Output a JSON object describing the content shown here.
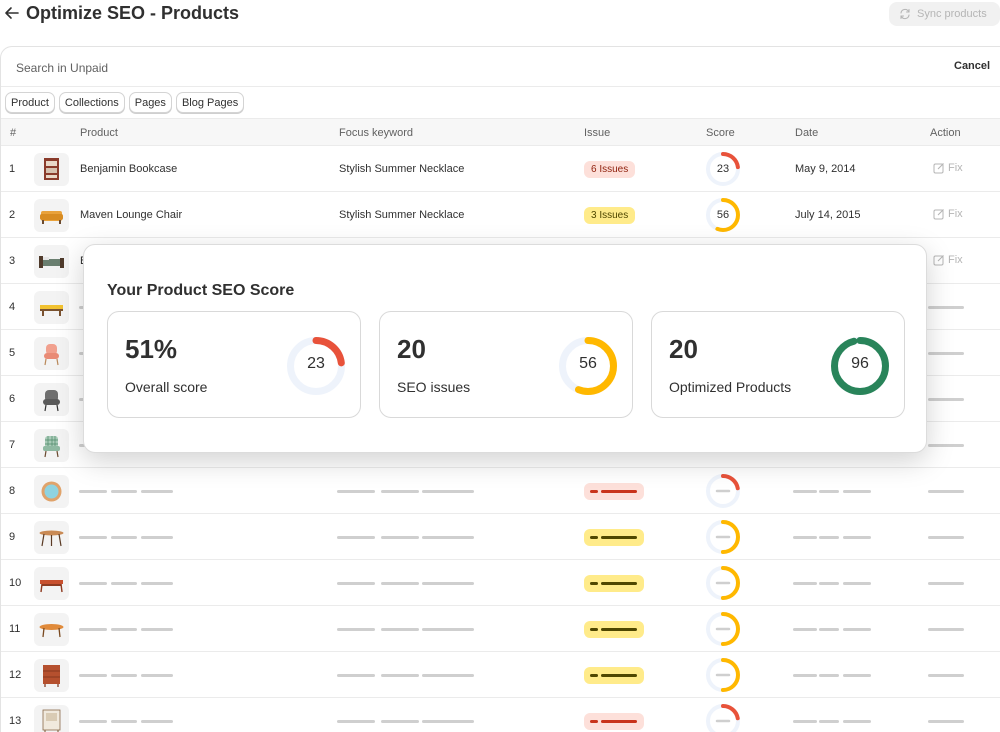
{
  "header": {
    "title": "Optimize SEO - Products",
    "sync_label": "Sync products"
  },
  "search": {
    "placeholder": "Search in Unpaid",
    "cancel_label": "Cancel"
  },
  "filters": [
    "Product",
    "Collections",
    "Pages",
    "Blog Pages"
  ],
  "table": {
    "columns": {
      "num": "#",
      "product": "Product",
      "keyword": "Focus keyword",
      "issue": "Issue",
      "score": "Score",
      "date": "Date",
      "action": "Action"
    },
    "rows": [
      {
        "num": "1",
        "product": "Benjamin Bookcase",
        "keyword": "Stylish Summer Necklace",
        "issue": "6 Issues",
        "issue_tone": "red",
        "score": 23,
        "date": "May 9, 2014",
        "action": "Fix",
        "thumb": "bookcase"
      },
      {
        "num": "2",
        "product": "Maven Lounge Chair",
        "keyword": "Stylish Summer Necklace",
        "issue": "3 Issues",
        "issue_tone": "yellow",
        "score": 56,
        "date": "July 14, 2015",
        "action": "Fix",
        "thumb": "sofa"
      },
      {
        "num": "3",
        "product": "B",
        "action": "Fix",
        "thumb": "bed"
      },
      {
        "num": "4",
        "thumb": "bench"
      },
      {
        "num": "5",
        "thumb": "pink-chair"
      },
      {
        "num": "6",
        "thumb": "gray-chair"
      },
      {
        "num": "7",
        "thumb": "plaid-chair"
      },
      {
        "num": "8",
        "thumb": "mirror",
        "issue_tone": "red"
      },
      {
        "num": "9",
        "thumb": "round-table",
        "issue_tone": "yellow"
      },
      {
        "num": "10",
        "thumb": "coffee-table",
        "issue_tone": "yellow"
      },
      {
        "num": "11",
        "thumb": "oval-table",
        "issue_tone": "yellow"
      },
      {
        "num": "12",
        "thumb": "dresser",
        "issue_tone": "yellow"
      },
      {
        "num": "13",
        "thumb": "cabinet",
        "issue_tone": "red"
      }
    ]
  },
  "overlay": {
    "title": "Your Product SEO Score",
    "cards": [
      {
        "value": "51%",
        "label": "Overall score",
        "ring": 23,
        "color": "#e8523a"
      },
      {
        "value": "20",
        "label": "SEO issues",
        "ring": 56,
        "color": "#ffb800"
      },
      {
        "value": "20",
        "label": "Optimized Products",
        "ring": 96,
        "color": "#29845a"
      }
    ]
  },
  "colors": {
    "red": "#e8523a",
    "yellow": "#ffb800",
    "green": "#29845a",
    "ring_track": "#eef3fb"
  }
}
